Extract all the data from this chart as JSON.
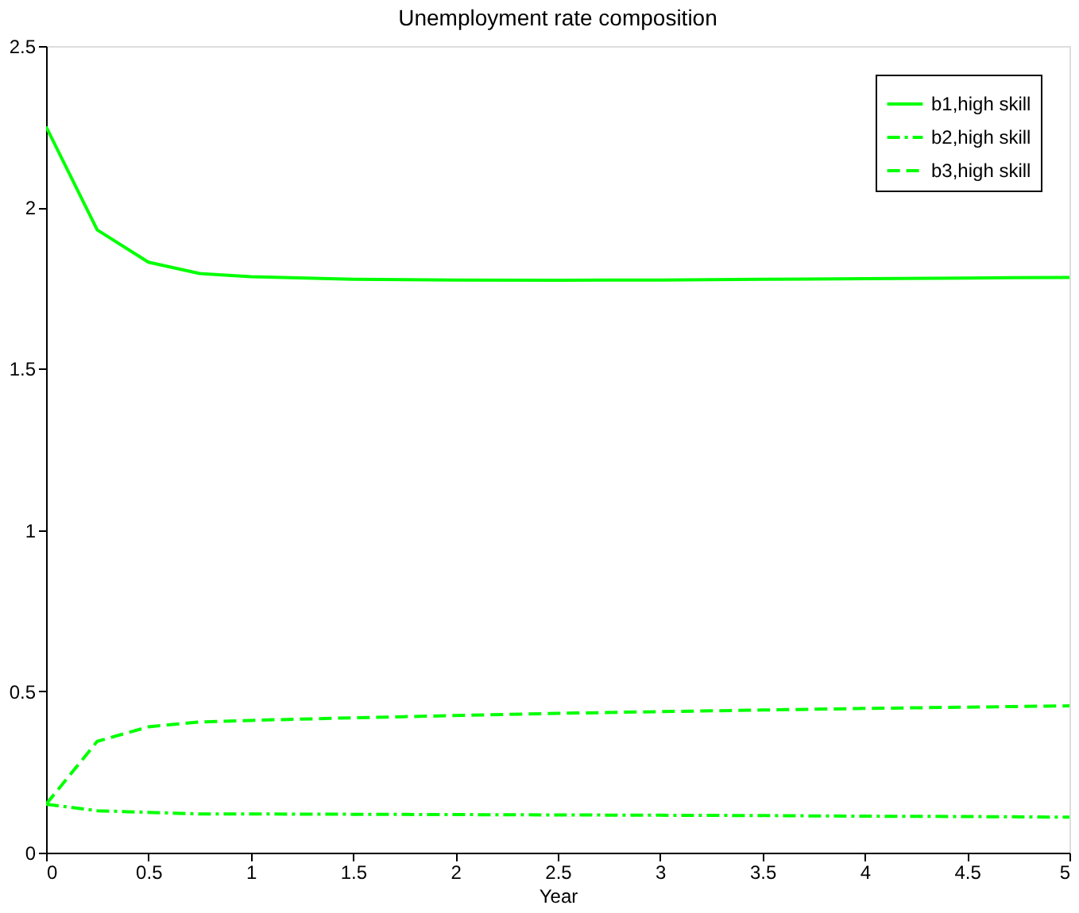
{
  "chart_data": {
    "type": "line",
    "title": "Unemployment rate composition",
    "xlabel": "Year",
    "x": [
      0,
      0.25,
      0.5,
      0.75,
      1,
      1.5,
      2,
      2.5,
      3,
      3.5,
      4,
      4.5,
      5
    ],
    "series": [
      {
        "name": "b1,high skill",
        "color": "#00ff00",
        "line_style": "solid",
        "values": [
          2.25,
          1.93,
          1.83,
          1.795,
          1.785,
          1.777,
          1.775,
          1.774,
          1.775,
          1.777,
          1.779,
          1.781,
          1.783
        ]
      },
      {
        "name": "b2,high skill",
        "color": "#00ff00",
        "line_style": "dashdot",
        "values": [
          0.15,
          0.13,
          0.125,
          0.12,
          0.12,
          0.119,
          0.118,
          0.117,
          0.116,
          0.115,
          0.113,
          0.112,
          0.11
        ]
      },
      {
        "name": "b3,high skill",
        "color": "#00ff00",
        "line_style": "dashed",
        "values": [
          0.15,
          0.345,
          0.39,
          0.405,
          0.41,
          0.418,
          0.425,
          0.432,
          0.437,
          0.442,
          0.447,
          0.451,
          0.455
        ]
      }
    ],
    "xlim": [
      0,
      5
    ],
    "xticks": [
      0,
      0.5,
      1,
      1.5,
      2,
      2.5,
      3,
      3.5,
      4,
      4.5,
      5
    ],
    "ylim": [
      0,
      2.5
    ],
    "yticks": [
      0,
      0.5,
      1,
      1.5,
      2,
      2.5
    ],
    "grid": false,
    "legend": "top right",
    "marker": "none"
  }
}
